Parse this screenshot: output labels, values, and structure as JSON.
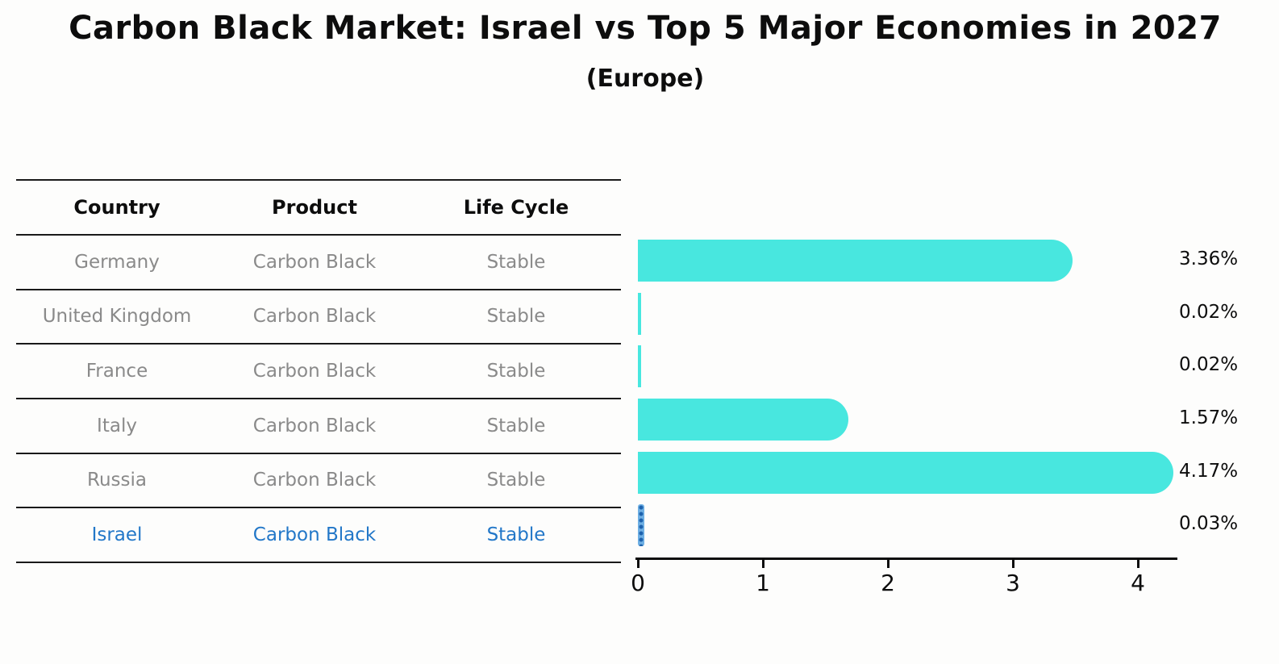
{
  "title": "Carbon Black Market: Israel vs Top 5 Major Economies in 2027",
  "subtitle": "(Europe)",
  "colors": {
    "bar": "#48e7df",
    "israel_bar_base": "#6fb0e4",
    "israel_bar_dots": "#1e63ae",
    "highlight_text": "#2277c8",
    "muted_text": "#8a8a8a",
    "text": "#0d0d0d"
  },
  "table": {
    "columns": [
      "Country",
      "Product",
      "Life Cycle"
    ],
    "rows": [
      {
        "country": "Germany",
        "product": "Carbon Black",
        "life_cycle": "Stable",
        "highlight": false
      },
      {
        "country": "United Kingdom",
        "product": "Carbon Black",
        "life_cycle": "Stable",
        "highlight": false
      },
      {
        "country": "France",
        "product": "Carbon Black",
        "life_cycle": "Stable",
        "highlight": false
      },
      {
        "country": "Italy",
        "product": "Carbon Black",
        "life_cycle": "Stable",
        "highlight": false
      },
      {
        "country": "Russia",
        "product": "Carbon Black",
        "life_cycle": "Stable",
        "highlight": false
      },
      {
        "country": "Israel",
        "product": "Carbon Black",
        "life_cycle": "Stable",
        "highlight": true
      }
    ]
  },
  "chart_data": {
    "type": "bar",
    "orientation": "horizontal",
    "title": "Carbon Black Market: Israel vs Top 5 Major Economies in 2027",
    "subtitle": "(Europe)",
    "categories": [
      "Germany",
      "United Kingdom",
      "France",
      "Italy",
      "Russia",
      "Israel"
    ],
    "values": [
      3.36,
      0.02,
      0.02,
      1.57,
      4.17,
      0.03
    ],
    "value_labels": [
      "3.36%",
      "0.02%",
      "0.02%",
      "1.57%",
      "4.17%",
      "0.03%"
    ],
    "highlight_category": "Israel",
    "xlabel": "",
    "ylabel": "",
    "xlim": [
      0,
      4.3
    ],
    "xticks": [
      0,
      1,
      2,
      3,
      4
    ],
    "grid": false,
    "legend": false
  }
}
